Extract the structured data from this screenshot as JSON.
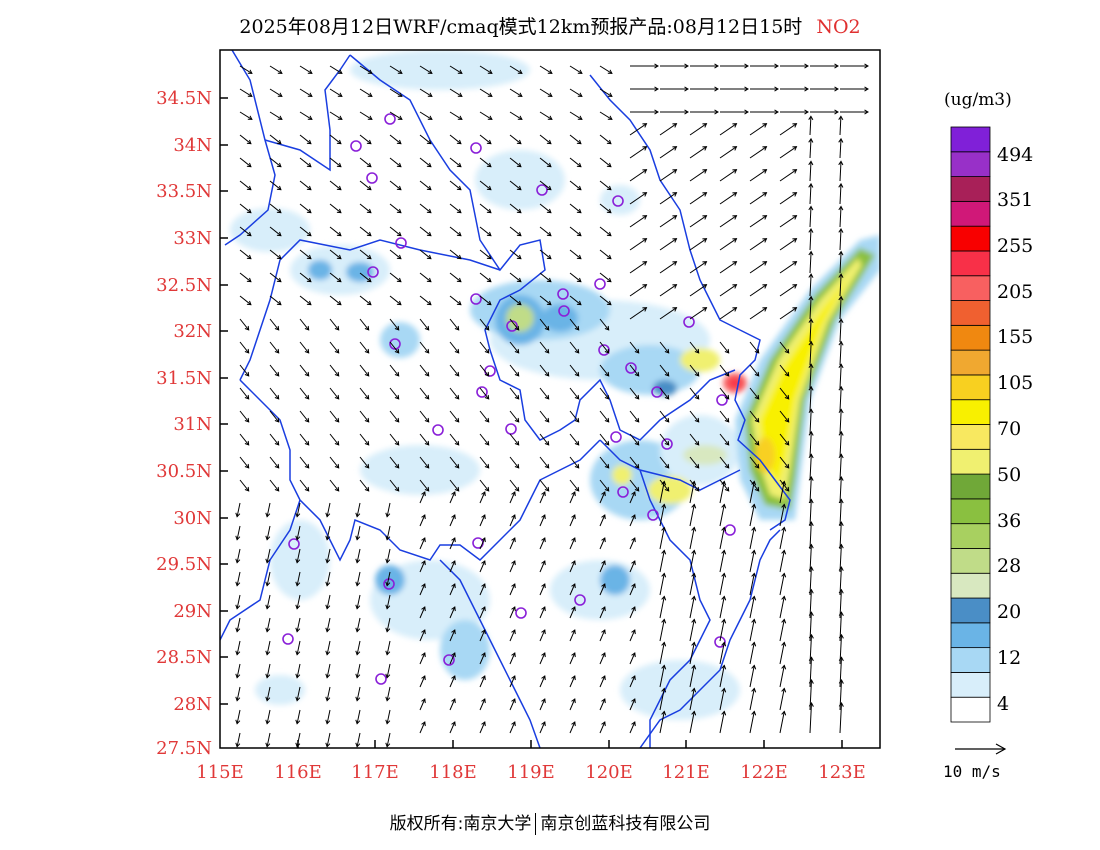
{
  "title": {
    "text": "2025年08月12日WRF/cmaq模式12km预报产品:08月12日15时",
    "species": "NO2"
  },
  "axes": {
    "lat_labels": [
      "34.5N",
      "34N",
      "33.5N",
      "33N",
      "32.5N",
      "32N",
      "31.5N",
      "31N",
      "30.5N",
      "30N",
      "29.5N",
      "29N",
      "28.5N",
      "28N",
      "27.5N"
    ],
    "lat_values": [
      34.5,
      34,
      33.5,
      33,
      32.5,
      32,
      31.5,
      31,
      30.5,
      30,
      29.5,
      29,
      28.5,
      28,
      27.5
    ],
    "lon_labels": [
      "115E",
      "116E",
      "117E",
      "118E",
      "119E",
      "120E",
      "121E",
      "122E",
      "123E"
    ],
    "lon_values": [
      115,
      116,
      117,
      118,
      119,
      120,
      121,
      122,
      123
    ],
    "lat_range": [
      27.5,
      35.0
    ],
    "lon_range": [
      115.0,
      123.5
    ],
    "label_color": "#e03838"
  },
  "legend": {
    "unit": "(ug/m3)",
    "colors": [
      "#ffffff",
      "#d8eefa",
      "#a8d8f4",
      "#6ab4e6",
      "#4a8ec6",
      "#d8e8c0",
      "#c0dc88",
      "#a8d060",
      "#8ac040",
      "#70a838",
      "#f0f070",
      "#f8e860",
      "#f8f000",
      "#f8d020",
      "#f0a830",
      "#f08810",
      "#f06030",
      "#f86060",
      "#f83048",
      "#f80000",
      "#d01878",
      "#a82058",
      "#9830c8",
      "#8020d8"
    ],
    "labels": [
      "4",
      "12",
      "20",
      "28",
      "36",
      "50",
      "70",
      "105",
      "155",
      "205",
      "255",
      "351",
      "494"
    ],
    "wind_scale": "10  m/s"
  },
  "footer": {
    "left": "版权所有:南京大学",
    "right": "南京创蓝科技有限公司"
  }
}
